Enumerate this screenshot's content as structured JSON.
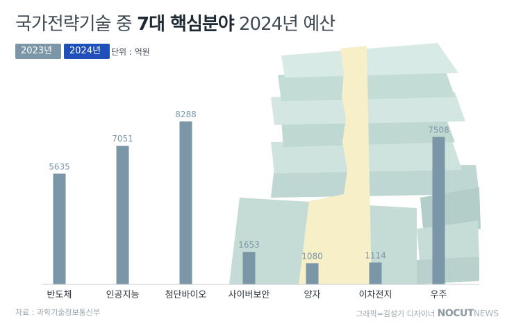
{
  "header": {
    "title_prefix": "국가전략기술 중",
    "title_emph": "7대 핵심분야",
    "title_suffix": "2024년 예산",
    "legend_2023": "2023년",
    "legend_2024": "2024년",
    "unit": "단위 : 억원"
  },
  "footer": {
    "source": "자료 : 과학기술정보통신부",
    "credit": "그래픽=김성기 디자이너",
    "logo": "NOCUT",
    "logo_sub": "NEWS"
  },
  "colors": {
    "bar": "#7b96a7",
    "accent": "#1f4fb8"
  },
  "chart_data": {
    "type": "bar",
    "categories": [
      "반도체",
      "인공지능",
      "첨단바이오",
      "사이버보안",
      "양자",
      "이차전지",
      "우주"
    ],
    "series": [
      {
        "name": "2024년",
        "values": [
          5635,
          7051,
          8288,
          1653,
          1080,
          1114,
          7508
        ]
      }
    ],
    "value_labels": [
      "5635",
      "7051",
      "8288",
      "1653",
      "1080",
      "1114",
      "7508"
    ],
    "ylim": [
      0,
      9000
    ],
    "title": "국가전략기술 중 7대 핵심분야 2024년 예산",
    "xlabel": "",
    "ylabel": ""
  }
}
